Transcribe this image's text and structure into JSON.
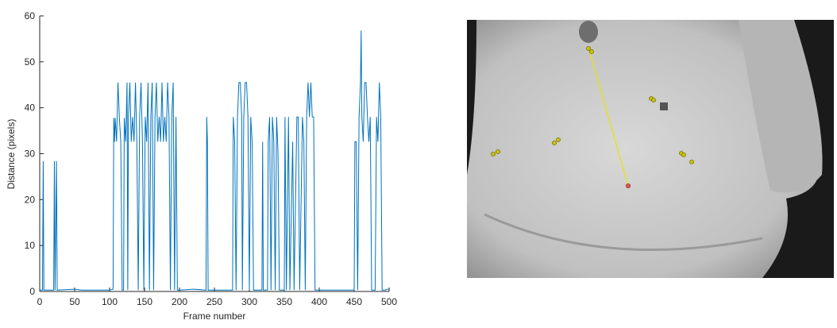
{
  "chart_data": {
    "type": "line",
    "xlabel": "Frame number",
    "ylabel": "Distance (pixels)",
    "xlim": [
      0,
      500
    ],
    "xticks": [
      0,
      50,
      100,
      150,
      200,
      250,
      300,
      350,
      400,
      450,
      500
    ],
    "ylim": [
      0,
      60
    ],
    "yticks": [
      0,
      10,
      20,
      30,
      40,
      50,
      60
    ],
    "x": [
      0,
      4,
      5,
      6,
      20,
      21,
      22,
      24,
      25,
      50,
      60,
      100,
      105,
      106,
      107,
      108,
      110,
      112,
      114,
      116,
      118,
      120,
      121,
      123,
      125,
      126,
      127,
      129,
      131,
      133,
      135,
      137,
      139,
      141,
      143,
      145,
      147,
      149,
      151,
      153,
      155,
      157,
      159,
      161,
      163,
      165,
      167,
      169,
      171,
      173,
      175,
      177,
      179,
      181,
      183,
      185,
      187,
      189,
      191,
      193,
      195,
      197,
      200,
      220,
      238,
      239,
      240,
      241,
      260,
      276,
      277,
      279,
      281,
      283,
      285,
      287,
      289,
      290,
      292,
      294,
      296,
      298,
      300,
      302,
      304,
      306,
      318,
      319,
      320,
      326,
      327,
      329,
      331,
      333,
      335,
      337,
      339,
      341,
      343,
      350,
      351,
      353,
      356,
      358,
      362,
      364,
      368,
      370,
      372,
      376,
      378,
      380,
      382,
      384,
      386,
      388,
      390,
      392,
      394,
      420,
      450,
      451,
      453,
      455,
      457,
      459,
      460,
      461,
      463,
      465,
      467,
      469,
      471,
      473,
      475,
      480,
      482,
      484,
      486,
      488,
      490,
      495,
      498,
      500
    ],
    "series": [
      {
        "color": "#0072bd",
        "values": [
          0.3,
          0.3,
          28.4,
          0.3,
          0.3,
          28.4,
          0.3,
          28.4,
          0.3,
          0.5,
          0.3,
          0.3,
          0.5,
          37.8,
          32.6,
          37.8,
          32.6,
          45.5,
          37.8,
          32.6,
          0.3,
          0.3,
          37.8,
          32.6,
          45.5,
          0.3,
          38,
          45.5,
          32.6,
          38,
          32.6,
          45.5,
          32.6,
          0.3,
          38,
          45.5,
          32.6,
          0.3,
          38,
          32.6,
          45.5,
          0.3,
          38,
          45.5,
          0.3,
          38,
          45.5,
          32.6,
          38,
          32.6,
          45.5,
          32.6,
          38,
          32.6,
          45.5,
          38,
          0.3,
          38,
          45.5,
          0.3,
          38,
          0.3,
          0.3,
          0.5,
          0.3,
          38,
          32.6,
          0.3,
          0.3,
          0.3,
          38,
          32.6,
          0.3,
          38,
          45.5,
          45.5,
          38,
          0.3,
          38,
          45.5,
          45.5,
          38,
          0.3,
          38,
          32.6,
          0.3,
          0.3,
          32.6,
          0.3,
          0.3,
          32.6,
          38,
          0.3,
          38,
          32.6,
          0.3,
          38,
          30.2,
          0.3,
          0.3,
          38,
          0.3,
          38,
          0.3,
          32.6,
          0.3,
          38,
          38,
          0.3,
          38,
          32.6,
          0.3,
          38,
          45.5,
          38,
          45.5,
          38,
          38,
          0.3,
          0.3,
          0.3,
          32.6,
          32.6,
          0.3,
          38,
          45.5,
          56.8,
          38,
          32.6,
          45.5,
          45.5,
          38,
          32.6,
          38,
          0.3,
          0.3,
          38,
          32.6,
          45.5,
          38,
          0.3,
          0.3,
          0.5,
          0.5
        ]
      }
    ]
  }
}
